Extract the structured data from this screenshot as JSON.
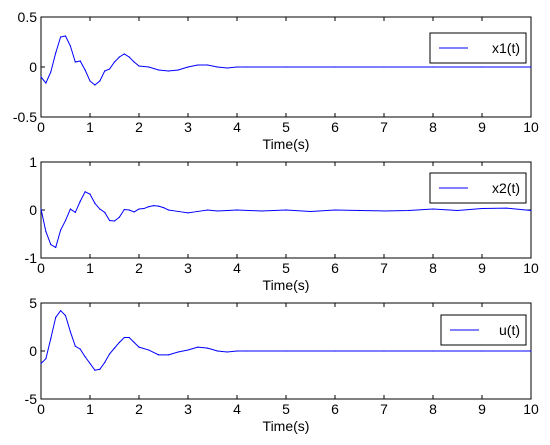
{
  "chart_data": [
    {
      "type": "line",
      "xlabel": "Time(s)",
      "ylabel": "",
      "xlim": [
        0,
        10
      ],
      "ylim": [
        -0.5,
        0.5
      ],
      "xticks": [
        "0",
        "1",
        "2",
        "3",
        "4",
        "5",
        "6",
        "7",
        "8",
        "9",
        "10"
      ],
      "yticks": [
        "-0.5",
        "0",
        "0.5"
      ],
      "ytick_values": [
        -0.5,
        0,
        0.5
      ],
      "grid": false,
      "legend": "top-right",
      "series": [
        {
          "name": "x1(t)",
          "color": "#0000ff",
          "x": [
            0,
            0.1,
            0.2,
            0.3,
            0.4,
            0.5,
            0.6,
            0.7,
            0.8,
            0.9,
            1.0,
            1.1,
            1.2,
            1.3,
            1.4,
            1.5,
            1.6,
            1.7,
            1.8,
            1.9,
            2.0,
            2.2,
            2.4,
            2.6,
            2.8,
            3.0,
            3.2,
            3.4,
            3.6,
            3.8,
            4.0,
            4.2,
            5,
            6,
            7,
            8,
            9,
            10
          ],
          "y": [
            -0.1,
            -0.16,
            -0.05,
            0.14,
            0.3,
            0.31,
            0.21,
            0.05,
            0.06,
            -0.03,
            -0.14,
            -0.18,
            -0.14,
            -0.04,
            -0.02,
            0.05,
            0.1,
            0.13,
            0.1,
            0.05,
            0.01,
            0.0,
            -0.03,
            -0.04,
            -0.03,
            0.0,
            0.02,
            0.02,
            0.0,
            -0.01,
            0.0,
            0.0,
            0,
            0,
            0,
            0,
            0,
            0
          ]
        }
      ]
    },
    {
      "type": "line",
      "xlabel": "Time(s)",
      "ylabel": "",
      "xlim": [
        0,
        10
      ],
      "ylim": [
        -1,
        1
      ],
      "xticks": [
        "0",
        "1",
        "2",
        "3",
        "4",
        "5",
        "6",
        "7",
        "8",
        "9",
        "10"
      ],
      "yticks": [
        "-1",
        "0",
        "1"
      ],
      "ytick_values": [
        -1,
        0,
        1
      ],
      "grid": false,
      "legend": "top-right",
      "series": [
        {
          "name": "x2(t)",
          "color": "#0000ff",
          "x": [
            0,
            0.1,
            0.2,
            0.3,
            0.4,
            0.5,
            0.6,
            0.7,
            0.8,
            0.9,
            1.0,
            1.1,
            1.2,
            1.3,
            1.4,
            1.5,
            1.6,
            1.7,
            1.8,
            1.9,
            2.0,
            2.1,
            2.2,
            2.3,
            2.4,
            2.5,
            2.6,
            2.8,
            3.0,
            3.2,
            3.4,
            3.6,
            3.8,
            4.0,
            4.5,
            5.0,
            5.5,
            6.0,
            6.5,
            7.0,
            7.5,
            8.0,
            8.5,
            9.0,
            9.5,
            10
          ],
          "y": [
            0.02,
            -0.45,
            -0.72,
            -0.78,
            -0.42,
            -0.22,
            0.02,
            -0.05,
            0.18,
            0.38,
            0.33,
            0.14,
            0.02,
            -0.05,
            -0.22,
            -0.23,
            -0.15,
            0.01,
            0.0,
            -0.04,
            0.02,
            0.03,
            0.07,
            0.09,
            0.08,
            0.05,
            0.0,
            -0.03,
            -0.06,
            -0.03,
            0.0,
            -0.02,
            -0.01,
            0.0,
            -0.02,
            0.0,
            -0.03,
            0.0,
            -0.01,
            -0.02,
            -0.01,
            0.02,
            -0.01,
            0.03,
            0.04,
            -0.01
          ]
        }
      ]
    },
    {
      "type": "line",
      "xlabel": "Time(s)",
      "ylabel": "",
      "xlim": [
        0,
        10
      ],
      "ylim": [
        -5,
        5
      ],
      "xticks": [
        "0",
        "1",
        "2",
        "3",
        "4",
        "5",
        "6",
        "7",
        "8",
        "9",
        "10"
      ],
      "yticks": [
        "-5",
        "0",
        "5"
      ],
      "ytick_values": [
        -5,
        0,
        5
      ],
      "grid": false,
      "legend": "top-right",
      "series": [
        {
          "name": "u(t)",
          "color": "#0000ff",
          "x": [
            0,
            0.1,
            0.2,
            0.3,
            0.4,
            0.5,
            0.6,
            0.7,
            0.8,
            0.9,
            1.0,
            1.1,
            1.2,
            1.3,
            1.4,
            1.5,
            1.6,
            1.7,
            1.8,
            1.9,
            2.0,
            2.2,
            2.4,
            2.6,
            2.8,
            3.0,
            3.2,
            3.4,
            3.6,
            3.8,
            4.0,
            4.2,
            5,
            6,
            7,
            8,
            9,
            10
          ],
          "y": [
            -1.3,
            -0.8,
            1.3,
            3.5,
            4.2,
            3.7,
            2.0,
            0.5,
            0.2,
            -0.6,
            -1.3,
            -2.0,
            -1.9,
            -1.2,
            -0.3,
            0.3,
            0.9,
            1.4,
            1.4,
            0.9,
            0.4,
            0.1,
            -0.4,
            -0.4,
            -0.1,
            0.1,
            0.4,
            0.3,
            0.0,
            -0.1,
            0.0,
            0.0,
            0,
            0,
            0,
            0,
            0,
            0
          ]
        }
      ]
    }
  ]
}
